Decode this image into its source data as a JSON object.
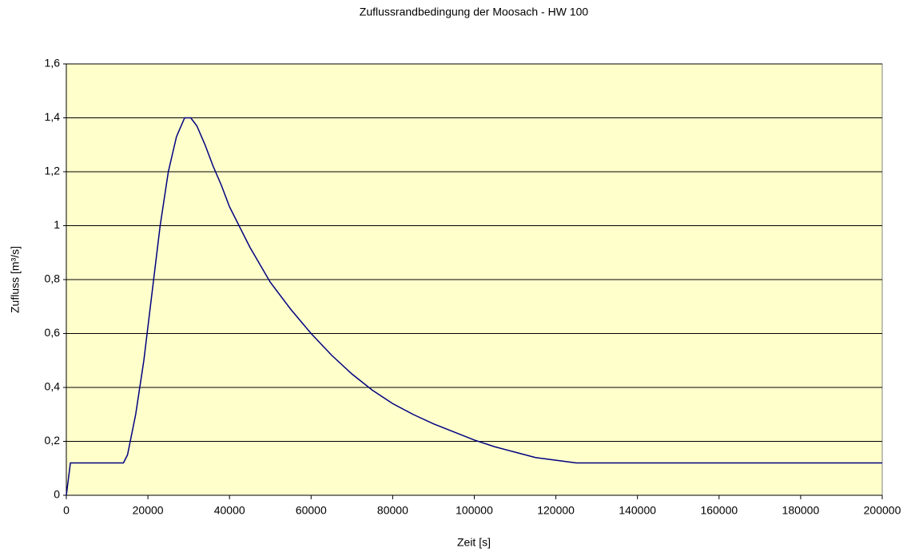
{
  "chart_data": {
    "type": "line",
    "title": "Zuflussrandbedingung der Moosach - HW 100",
    "x_label": "Zeit [s]",
    "y_label": "Zufluss [m³/s]",
    "x": [
      0,
      1000,
      14000,
      15000,
      17000,
      19000,
      21000,
      23000,
      25000,
      27000,
      29000,
      30500,
      32000,
      34000,
      36000,
      38000,
      40000,
      45000,
      50000,
      55000,
      60000,
      65000,
      70000,
      75000,
      80000,
      85000,
      90000,
      95000,
      100000,
      105000,
      110000,
      115000,
      120000,
      125000,
      200000
    ],
    "values": [
      0,
      0.12,
      0.12,
      0.15,
      0.3,
      0.5,
      0.75,
      1.0,
      1.2,
      1.33,
      1.4,
      1.4,
      1.37,
      1.3,
      1.22,
      1.15,
      1.07,
      0.92,
      0.79,
      0.69,
      0.6,
      0.52,
      0.45,
      0.39,
      0.34,
      0.3,
      0.265,
      0.235,
      0.205,
      0.18,
      0.16,
      0.14,
      0.13,
      0.12,
      0.12
    ],
    "color": "#000080",
    "xlim": [
      0,
      200000
    ],
    "xticks": [
      0,
      20000,
      40000,
      60000,
      80000,
      100000,
      120000,
      140000,
      160000,
      180000,
      200000
    ],
    "ylim": [
      0,
      1.6
    ],
    "yticks": [
      0,
      {
        "value": 0.2,
        "label": "0,2"
      },
      {
        "value": 0.4,
        "label": "0,4"
      },
      {
        "value": 0.6,
        "label": "0,6"
      },
      {
        "value": 0.8,
        "label": "0,8"
      },
      1,
      {
        "value": 1.2,
        "label": "1,2"
      },
      {
        "value": 1.4,
        "label": "1,4"
      },
      {
        "value": 1.6,
        "label": "1,6"
      }
    ],
    "grid": true,
    "plot_background": "#ffffcc"
  }
}
